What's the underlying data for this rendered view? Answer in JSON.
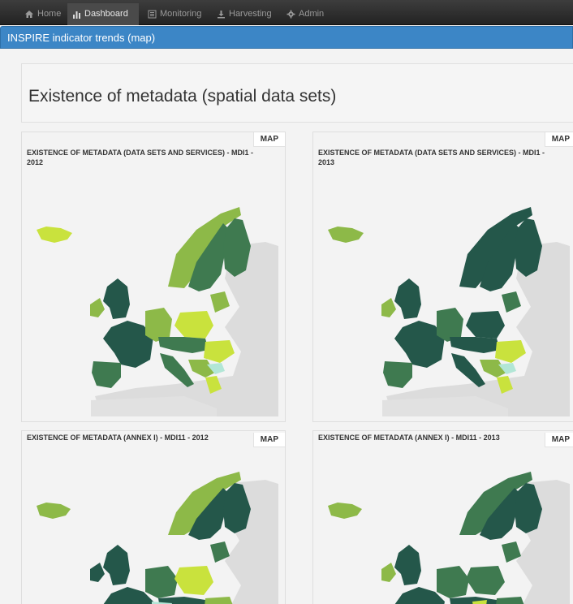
{
  "nav": {
    "items": [
      {
        "label": "Home",
        "icon": "home-icon"
      },
      {
        "label": "Dashboard",
        "icon": "bar-chart-icon",
        "active": true
      },
      {
        "label": "Monitoring",
        "icon": "list-icon"
      },
      {
        "label": "Harvesting",
        "icon": "download-icon"
      },
      {
        "label": "Admin",
        "icon": "gear-icon"
      }
    ]
  },
  "panel": {
    "title": "INSPIRE indicator trends (map)"
  },
  "page": {
    "heading": "Existence of metadata (spatial data sets)"
  },
  "maps": [
    {
      "tab": "MAP",
      "title": "EXISTENCE OF METADATA (DATA SETS AND SERVICES) - MDI1 - 2012"
    },
    {
      "tab": "MAP",
      "title": "EXISTENCE OF METADATA (DATA SETS AND SERVICES) - MDI1 - 2013"
    },
    {
      "tab": "MAP",
      "title": "EXISTENCE OF METADATA (ANNEX I) - MDI11 - 2012"
    },
    {
      "tab": "MAP",
      "title": "EXISTENCE OF METADATA (ANNEX I) - MDI11 - 2013"
    }
  ],
  "colors": {
    "nav_bg": "#2b2b2b",
    "panel_blue": "#3c86c6",
    "dark_teal": "#24574a",
    "mid_green": "#3f7a50",
    "olive_green": "#8db948",
    "lime": "#c9e23d",
    "light_cyan": "#b2e6d6",
    "land_gray": "#dcdcdc"
  }
}
